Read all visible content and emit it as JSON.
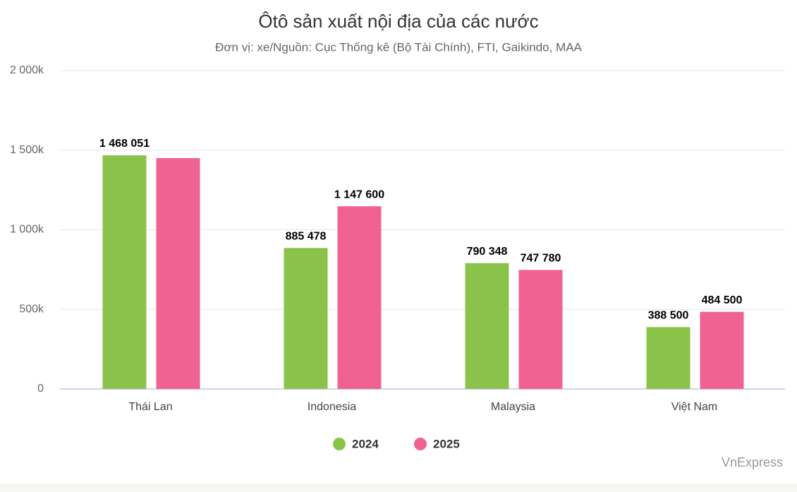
{
  "chart_data": {
    "type": "bar",
    "title": "Ôtô sản xuất nội địa của các nước",
    "subtitle": "Đơn vị: xe/Nguồn: Cục Thống kê (Bộ Tài Chính), FTI, Gaikindo, MAA",
    "credit": "VnExpress",
    "categories": [
      "Thái Lan",
      "Indonesia",
      "Malaysia",
      "Việt Nam"
    ],
    "series": [
      {
        "name": "2024",
        "color": "#8bc34a",
        "values": [
          1468051,
          885478,
          790348,
          388500
        ],
        "value_labels": [
          "1 468 051",
          "885 478",
          "790 348",
          "388 500"
        ]
      },
      {
        "name": "2025",
        "color": "#f06292",
        "values": [
          1450000,
          1147600,
          747780,
          484500
        ],
        "value_labels": [
          null,
          "1 147 600",
          "747 780",
          "484 500"
        ]
      }
    ],
    "ylim": [
      0,
      2000000
    ],
    "yticks": [
      0,
      {
        "value": 500000,
        "label": "500k"
      },
      {
        "value": 1000000,
        "label": "1 000k"
      },
      {
        "value": 1500000,
        "label": "1 500k"
      },
      {
        "value": 2000000,
        "label": "2 000k"
      }
    ],
    "grid": true
  }
}
